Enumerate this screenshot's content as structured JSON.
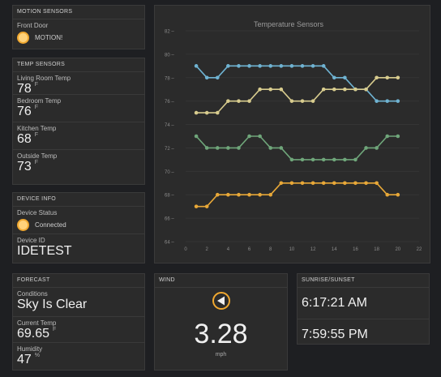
{
  "motion": {
    "title": "MOTION SENSORS",
    "label": "Front Door",
    "status": "MOTION!"
  },
  "temps": {
    "title": "TEMP SENSORS",
    "unit": "F",
    "items": [
      {
        "label": "Living Room Temp",
        "value": "78"
      },
      {
        "label": "Bedroom Temp",
        "value": "76"
      },
      {
        "label": "Kitchen Temp",
        "value": "68"
      },
      {
        "label": "Outside Temp",
        "value": "73"
      }
    ]
  },
  "device": {
    "title": "DEVICE INFO",
    "status_label": "Device Status",
    "status": "Connected",
    "id_label": "Device ID",
    "id": "IDETEST"
  },
  "forecast": {
    "title": "FORECAST",
    "conditions_label": "Conditions",
    "conditions": "Sky Is Clear",
    "temp_label": "Current Temp",
    "temp": "69.65",
    "temp_unit": "F",
    "humidity_label": "Humidity",
    "humidity": "47",
    "humidity_unit": "%"
  },
  "wind": {
    "title": "WIND",
    "speed": "3.28",
    "unit": "mph",
    "direction_icon": "wind-direction-arrow-icon"
  },
  "sun": {
    "title": "SUNRISE/SUNSET",
    "sunrise": "6:17:21 AM",
    "sunset": "7:59:55 PM"
  },
  "colors": {
    "accent": "#f0a830",
    "series_blue": "#6fb3d2",
    "series_tan": "#d8cc8e",
    "series_green": "#6fa67a",
    "series_orange": "#e8a838"
  },
  "chart_data": {
    "type": "line",
    "title": "Temperature Sensors",
    "xlim": [
      0,
      22
    ],
    "ylim": [
      64,
      82
    ],
    "xticks": [
      0,
      2,
      4,
      6,
      8,
      10,
      12,
      14,
      16,
      18,
      20,
      22
    ],
    "yticks": [
      64,
      66,
      68,
      70,
      72,
      74,
      76,
      78,
      80,
      82
    ],
    "x": [
      1,
      2,
      3,
      4,
      5,
      6,
      7,
      8,
      9,
      10,
      11,
      12,
      13,
      14,
      15,
      16,
      17,
      18,
      19,
      20
    ],
    "series": [
      {
        "color": "#6fb3d2",
        "values": [
          79,
          78,
          78,
          79,
          79,
          79,
          79,
          79,
          79,
          79,
          79,
          79,
          79,
          78,
          78,
          77,
          77,
          76,
          76,
          76
        ]
      },
      {
        "color": "#d8cc8e",
        "values": [
          75,
          75,
          75,
          76,
          76,
          76,
          77,
          77,
          77,
          76,
          76,
          76,
          77,
          77,
          77,
          77,
          77,
          78,
          78,
          78
        ]
      },
      {
        "color": "#6fa67a",
        "values": [
          73,
          72,
          72,
          72,
          72,
          73,
          73,
          72,
          72,
          71,
          71,
          71,
          71,
          71,
          71,
          71,
          72,
          72,
          73,
          73
        ]
      },
      {
        "color": "#e8a838",
        "values": [
          67,
          67,
          68,
          68,
          68,
          68,
          68,
          68,
          69,
          69,
          69,
          69,
          69,
          69,
          69,
          69,
          69,
          69,
          68,
          68
        ]
      }
    ]
  }
}
